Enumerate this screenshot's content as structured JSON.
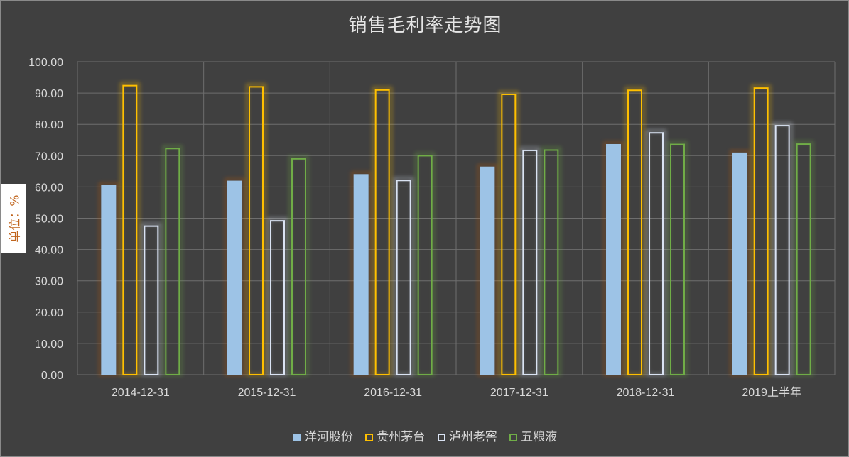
{
  "chart_data": {
    "type": "bar",
    "title": "销售毛利率走势图",
    "ylabel": "单位：%",
    "xlabel": "",
    "ylim": [
      0,
      100
    ],
    "yticks": [
      "0.00",
      "10.00",
      "20.00",
      "30.00",
      "40.00",
      "50.00",
      "60.00",
      "70.00",
      "80.00",
      "90.00",
      "100.00"
    ],
    "categories": [
      "2014-12-31",
      "2015-12-31",
      "2016-12-31",
      "2017-12-31",
      "2018-12-31",
      "2019上半年"
    ],
    "series": [
      {
        "name": "洋河股份",
        "style": "filled",
        "color": "#9dc3e6",
        "values": [
          60.6,
          62.0,
          64.1,
          66.5,
          73.7,
          71.0
        ]
      },
      {
        "name": "贵州茅台",
        "style": "outline",
        "color": "#ffc000",
        "values": [
          92.6,
          92.2,
          91.2,
          89.8,
          91.1,
          91.8
        ]
      },
      {
        "name": "泸州老窖",
        "style": "outline",
        "color": "#dae3f3",
        "values": [
          47.7,
          49.4,
          62.3,
          71.9,
          77.5,
          79.8
        ]
      },
      {
        "name": "五粮液",
        "style": "outline",
        "color": "#70ad47",
        "values": [
          72.5,
          69.2,
          70.2,
          72.0,
          73.8,
          73.9
        ]
      }
    ],
    "grid": true,
    "legend_position": "bottom"
  }
}
